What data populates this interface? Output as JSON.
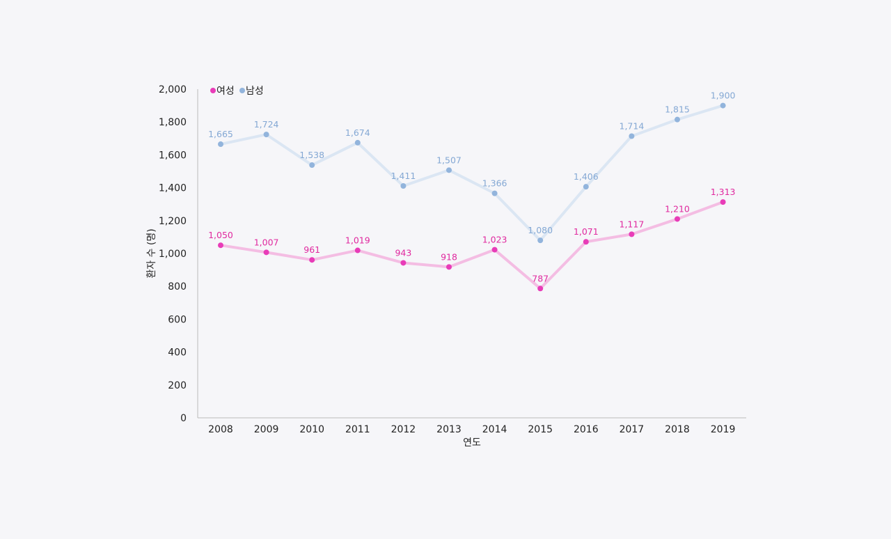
{
  "chart_data": {
    "type": "line",
    "title": "",
    "xlabel": "연도",
    "ylabel": "환자 수 (명)",
    "ylim": [
      0,
      2000
    ],
    "yticks": [
      0,
      200,
      400,
      600,
      800,
      1000,
      1200,
      1400,
      1600,
      1800,
      2000
    ],
    "ytick_labels": [
      "0",
      "200",
      "400",
      "600",
      "800",
      "1,000",
      "1,200",
      "1,400",
      "1,600",
      "1,800",
      "2,000"
    ],
    "grid": false,
    "legend_position": "top-left",
    "categories": [
      "2008",
      "2009",
      "2010",
      "2011",
      "2012",
      "2013",
      "2014",
      "2015",
      "2016",
      "2017",
      "2018",
      "2019"
    ],
    "series": [
      {
        "name": "여성",
        "line_color": "#f4bde3",
        "marker_color": "#e83cb8",
        "label_color": "#e0299f",
        "values": [
          1050,
          1007,
          961,
          1019,
          943,
          918,
          1023,
          787,
          1071,
          1117,
          1210,
          1313
        ],
        "data_labels": [
          "1,050",
          "1,007",
          "961",
          "1,019",
          "943",
          "918",
          "1,023",
          "787",
          "1,071",
          "1,117",
          "1,210",
          "1,313"
        ]
      },
      {
        "name": "남성",
        "line_color": "#dbe6f3",
        "marker_color": "#92b4dc",
        "label_color": "#84a8d4",
        "values": [
          1665,
          1724,
          1538,
          1674,
          1411,
          1507,
          1366,
          1080,
          1406,
          1714,
          1815,
          1900
        ],
        "data_labels": [
          "1,665",
          "1,724",
          "1,538",
          "1,674",
          "1,411",
          "1,507",
          "1,366",
          "1,080",
          "1,406",
          "1,714",
          "1,815",
          "1,900"
        ]
      }
    ]
  }
}
